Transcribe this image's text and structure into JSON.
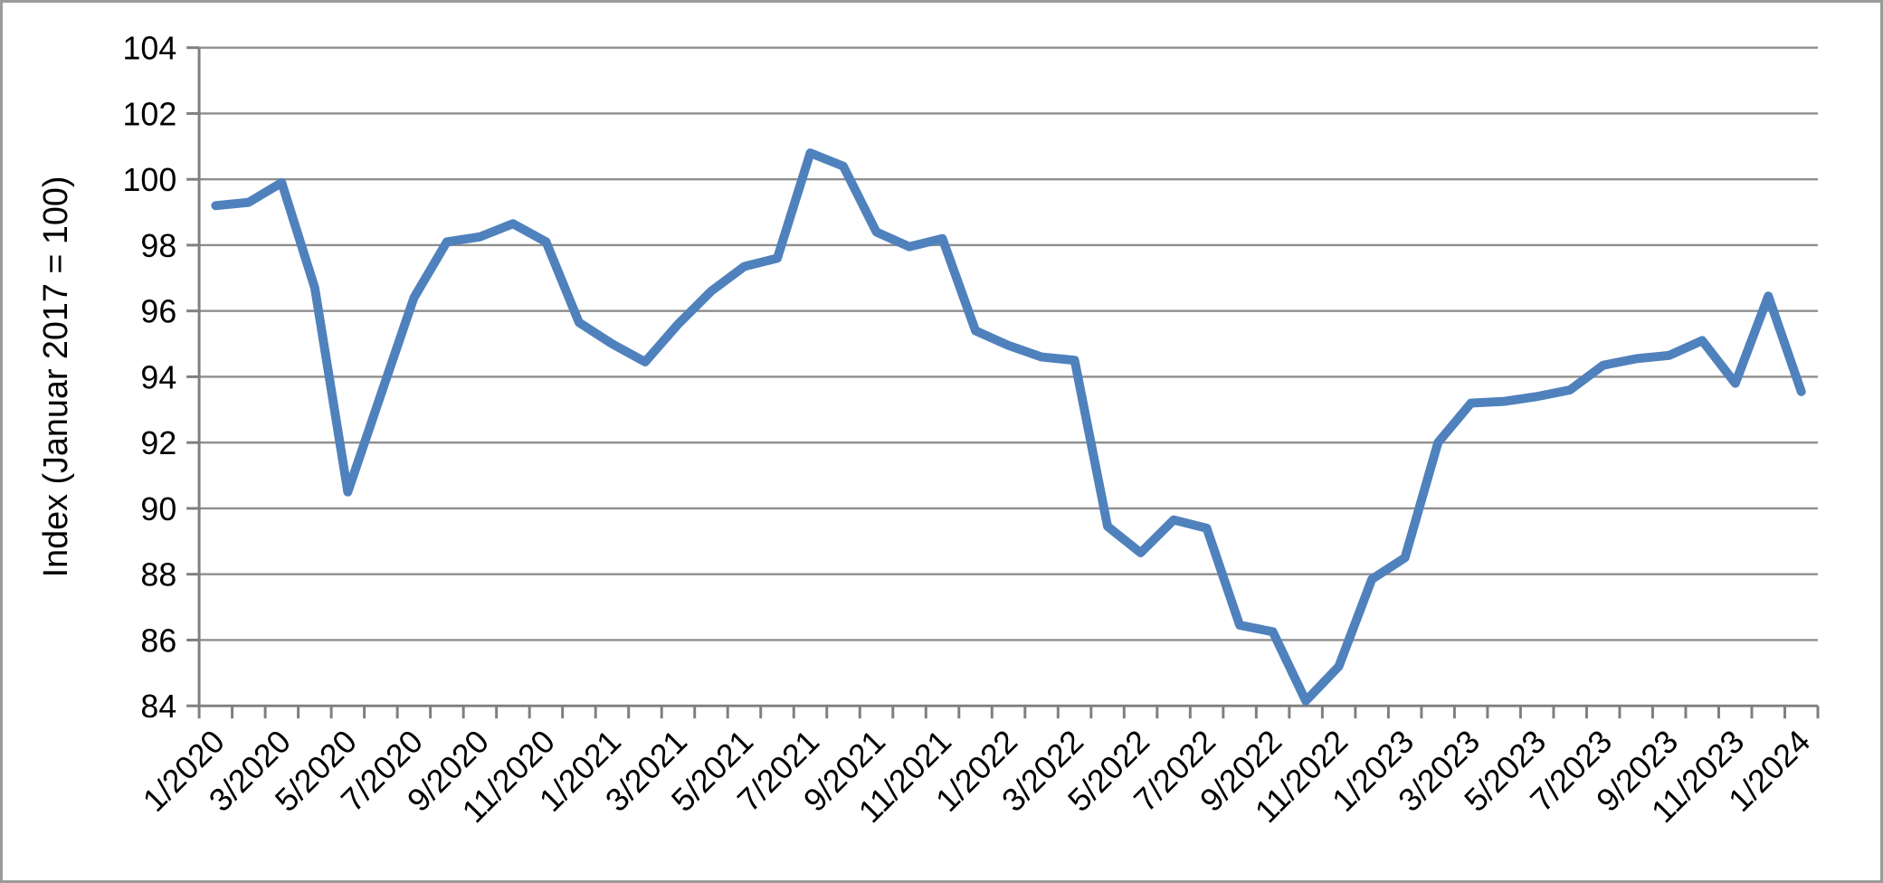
{
  "page": {
    "background_color": "#ffffff",
    "frame_border_color": "#9a9a9a"
  },
  "chart_data": {
    "type": "line",
    "title": "",
    "xlabel": "",
    "ylabel": "Index (Januar 2017 = 100)",
    "ylim": [
      84,
      104
    ],
    "ytick_step": 2,
    "yticks": [
      84,
      86,
      88,
      90,
      92,
      94,
      96,
      98,
      100,
      102,
      104
    ],
    "xtick_label_every": 2,
    "grid": "horizontal",
    "legend": "none",
    "line_color": "#4F81BD",
    "gridline_color": "#8e8e8e",
    "axis_color": "#7f7f7f",
    "text_color": "#000000",
    "categories": [
      "1/2020",
      "2/2020",
      "3/2020",
      "4/2020",
      "5/2020",
      "6/2020",
      "7/2020",
      "8/2020",
      "9/2020",
      "10/2020",
      "11/2020",
      "12/2020",
      "1/2021",
      "2/2021",
      "3/2021",
      "4/2021",
      "5/2021",
      "6/2021",
      "7/2021",
      "8/2021",
      "9/2021",
      "10/2021",
      "11/2021",
      "12/2021",
      "1/2022",
      "2/2022",
      "3/2022",
      "4/2022",
      "5/2022",
      "6/2022",
      "7/2022",
      "8/2022",
      "9/2022",
      "10/2022",
      "11/2022",
      "12/2022",
      "1/2023",
      "2/2023",
      "3/2023",
      "4/2023",
      "5/2023",
      "6/2023",
      "7/2023",
      "8/2023",
      "9/2023",
      "10/2023",
      "11/2023",
      "12/2023",
      "1/2024"
    ],
    "values": [
      99.2,
      99.3,
      99.9,
      96.7,
      90.5,
      93.45,
      96.4,
      98.1,
      98.25,
      98.65,
      98.1,
      95.65,
      95.0,
      94.45,
      95.6,
      96.6,
      97.35,
      97.6,
      100.8,
      100.4,
      98.4,
      97.95,
      98.2,
      95.4,
      94.95,
      94.6,
      94.5,
      89.45,
      88.65,
      89.65,
      89.4,
      86.45,
      86.25,
      84.15,
      85.2,
      87.85,
      88.5,
      92.0,
      93.2,
      93.25,
      93.4,
      93.6,
      94.35,
      94.55,
      94.65,
      95.1,
      93.8,
      96.45,
      93.55
    ]
  }
}
